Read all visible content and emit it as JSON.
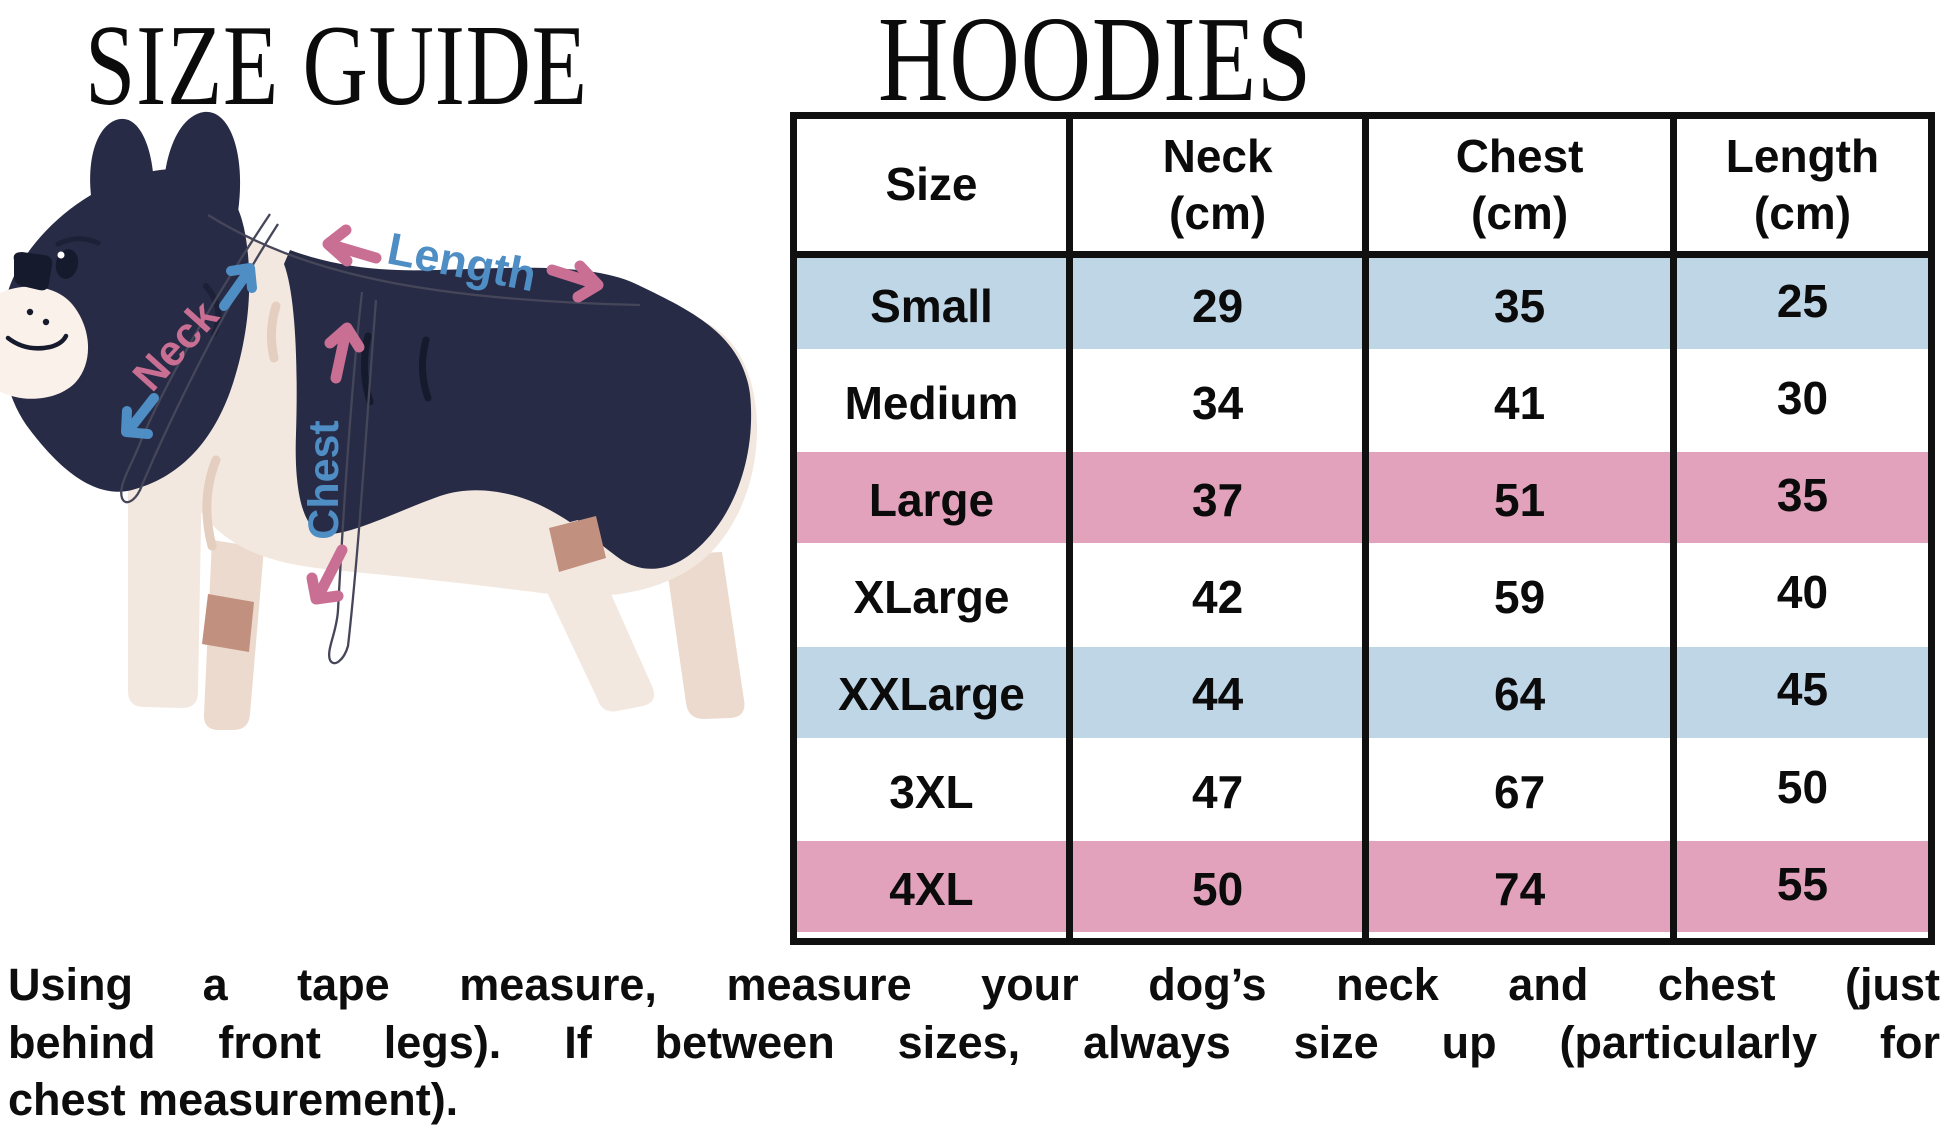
{
  "titles": {
    "left": "SIZE GUIDE",
    "right": "HOODIES"
  },
  "diagram": {
    "labels": {
      "length": "Length",
      "neck": "Neck",
      "chest": "Chest"
    }
  },
  "table": {
    "columns": [
      {
        "label": "Size",
        "unit": ""
      },
      {
        "label": "Neck",
        "unit": "(cm)"
      },
      {
        "label": "Chest",
        "unit": "(cm)"
      },
      {
        "label": "Length",
        "unit": "(cm)"
      }
    ],
    "rows": [
      {
        "size": "Small",
        "neck": "29",
        "chest": "35",
        "length": "25",
        "band": "blue"
      },
      {
        "size": "Medium",
        "neck": "34",
        "chest": "41",
        "length": "30",
        "band": "white"
      },
      {
        "size": "Large",
        "neck": "37",
        "chest": "51",
        "length": "35",
        "band": "pink"
      },
      {
        "size": "XLarge",
        "neck": "42",
        "chest": "59",
        "length": "40",
        "band": "white"
      },
      {
        "size": "XXLarge",
        "neck": "44",
        "chest": "64",
        "length": "45",
        "band": "blue"
      },
      {
        "size": "3XL",
        "neck": "47",
        "chest": "67",
        "length": "50",
        "band": "white"
      },
      {
        "size": "4XL",
        "neck": "50",
        "chest": "74",
        "length": "55",
        "band": "pink"
      }
    ]
  },
  "footer": {
    "lines": [
      "Using a tape measure, measure your dog’s neck and chest (just",
      "behind front legs). If between sizes, always size up (particularly for",
      "chest measurement)."
    ]
  },
  "colors": {
    "row_blue": "#BFD6E7",
    "row_pink": "#E2A2BB",
    "accent_pink": "#CA6F94",
    "accent_blue": "#4F8EC4",
    "dog_dark": "#272B45",
    "dog_cream": "#F3E8DF"
  },
  "chart_data": {
    "type": "table",
    "title": "HOODIES",
    "columns": [
      "Size",
      "Neck (cm)",
      "Chest (cm)",
      "Length (cm)"
    ],
    "rows": [
      [
        "Small",
        29,
        35,
        25
      ],
      [
        "Medium",
        34,
        41,
        30
      ],
      [
        "Large",
        37,
        51,
        35
      ],
      [
        "XLarge",
        42,
        59,
        40
      ],
      [
        "XXLarge",
        44,
        64,
        45
      ],
      [
        "3XL",
        47,
        67,
        50
      ],
      [
        "4XL",
        50,
        74,
        55
      ]
    ],
    "notes": "Rows banded light blue / white / pink; measurements in centimetres"
  }
}
